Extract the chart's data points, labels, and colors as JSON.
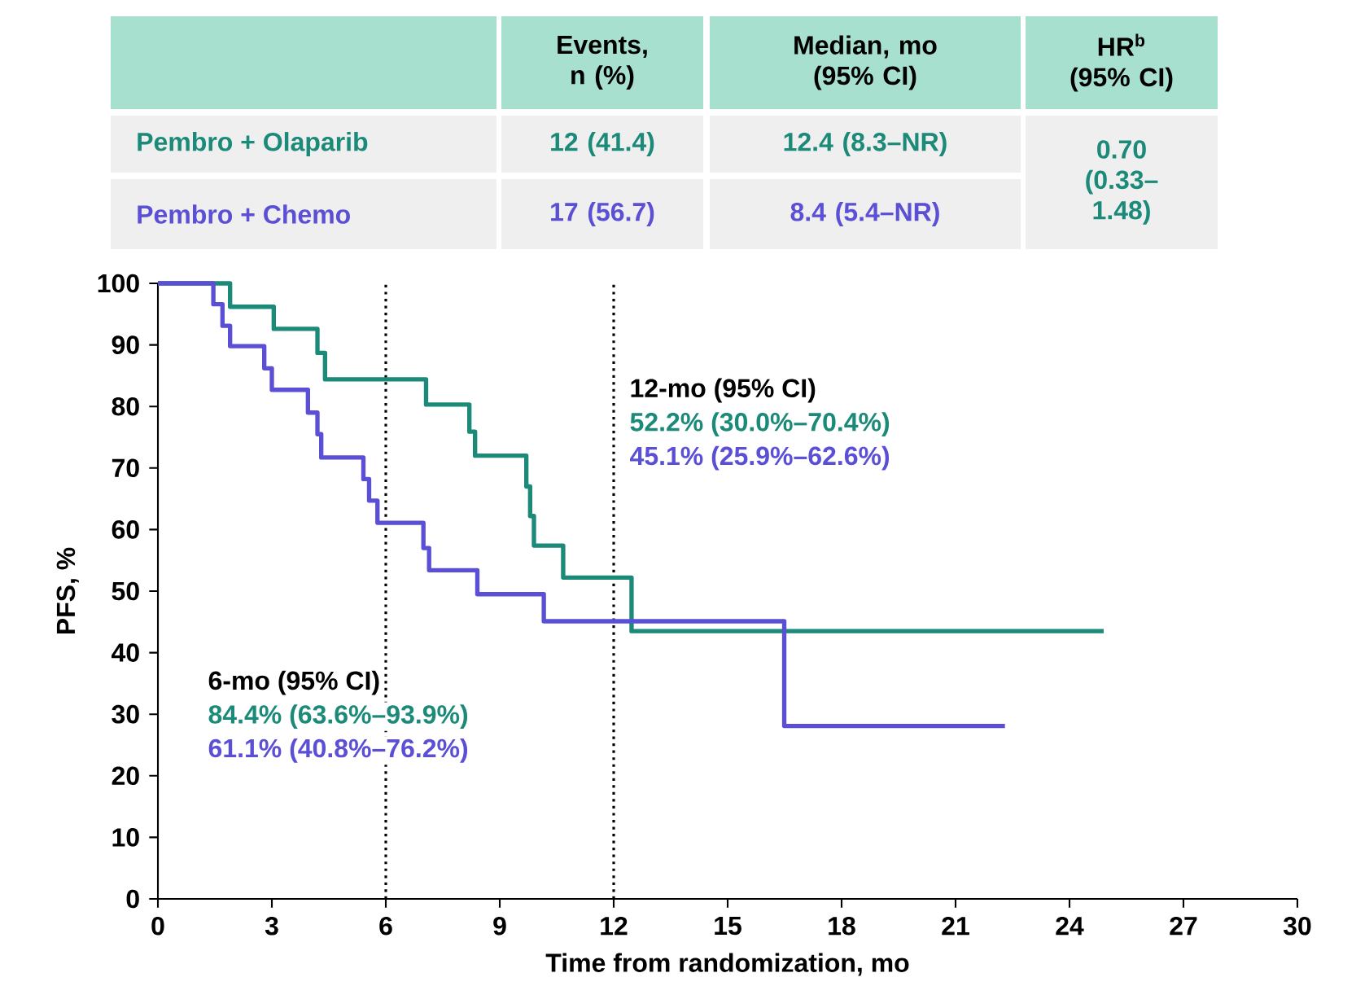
{
  "chart_data": {
    "type": "step",
    "xlabel": "Time from randomization, mo",
    "ylabel": "PFS, %",
    "xlim": [
      0,
      30
    ],
    "ylim": [
      0,
      100
    ],
    "xticks": [
      0,
      3,
      6,
      9,
      12,
      15,
      18,
      21,
      24,
      27,
      30
    ],
    "yticks": [
      0,
      10,
      20,
      30,
      40,
      50,
      60,
      70,
      80,
      90,
      100
    ],
    "series": [
      {
        "name": "Pembro + Olaparib",
        "color": "#1b8a78",
        "x": [
          0,
          1.9,
          3.05,
          4.2,
          4.4,
          7.06,
          8.2,
          8.35,
          9.7,
          9.8,
          9.9,
          10.67,
          12.47,
          24.9
        ],
        "values": [
          100,
          96.2,
          92.6,
          88.7,
          84.4,
          80.3,
          75.9,
          72,
          67,
          62.2,
          57.4,
          52.2,
          43.5,
          43.5
        ]
      },
      {
        "name": "Pembro + Chemo",
        "color": "#5b4fd6",
        "x": [
          0,
          1.46,
          1.7,
          1.9,
          2.8,
          3.0,
          3.95,
          4.2,
          4.3,
          5.41,
          5.56,
          5.78,
          6.99,
          7.14,
          8.41,
          10.16,
          16.49,
          22.3
        ],
        "values": [
          100,
          96.6,
          93.1,
          89.8,
          86.2,
          82.7,
          79,
          75.5,
          71.7,
          68.2,
          64.7,
          61.1,
          57,
          53.4,
          49.5,
          45.1,
          28.1,
          28.1
        ]
      }
    ],
    "ref_lines": [
      {
        "axis": "x",
        "value": 6,
        "line_style": "dotted"
      },
      {
        "axis": "x",
        "value": 12,
        "line_style": "dotted"
      }
    ],
    "annotations": [
      "Events, n (%)",
      "Median, mo (95% CI)",
      "HR$^{b}$ (95% CI)",
      "12 (41.4)",
      "12.4 (8.3–NR)",
      "17 (56.7)",
      "8.4 (5.4–NR)",
      "0.70 (0.33–1.48)",
      "6-mo (95% CI)",
      "84.4% (63.6%–93.9%)",
      "61.1% (40.8%–76.2%)",
      "12-mo (95% CI)",
      "52.2% (30.0%–70.4%)",
      "45.1% (25.9%–62.6%)"
    ]
  }
}
